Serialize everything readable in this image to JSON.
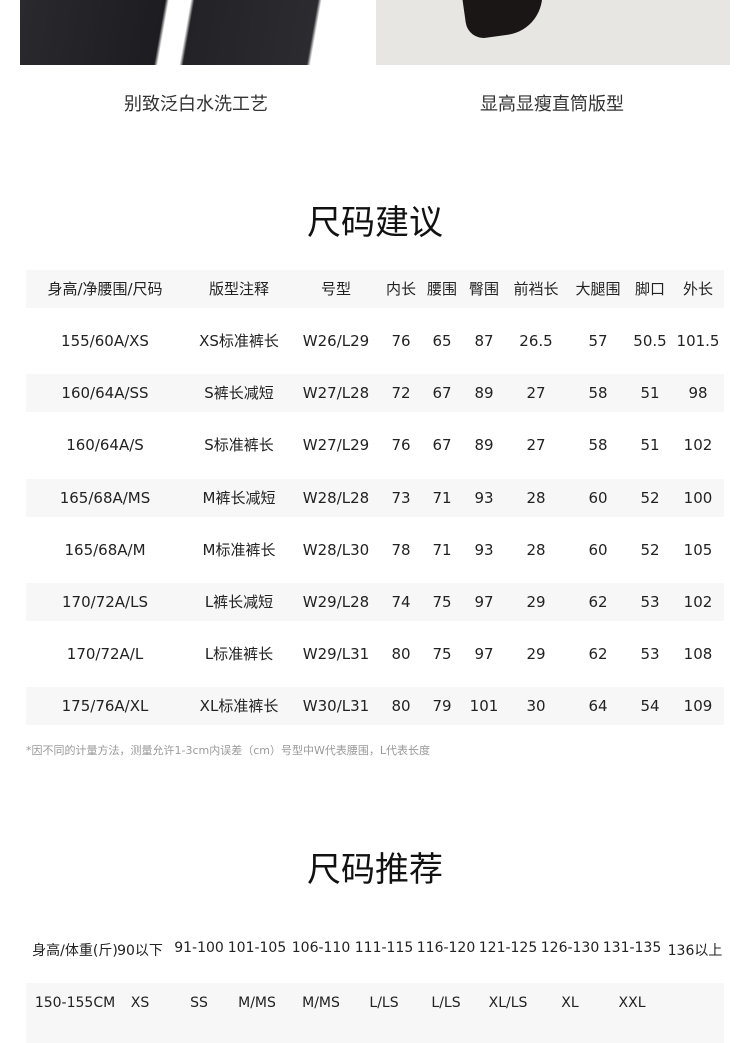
{
  "images": [
    {
      "caption": "别致泛白水洗工艺"
    },
    {
      "caption": "显高显瘦直筒版型"
    }
  ],
  "size_suggest": {
    "title": "尺码建议",
    "headers": [
      "身高/净腰围/尺码",
      "版型注释",
      "号型",
      "内长",
      "腰围",
      "臀围",
      "前裆长",
      "大腿围",
      "脚口",
      "外长"
    ],
    "rows": [
      [
        "155/60A/XS",
        "XS标准裤长",
        "W26/L29",
        "76",
        "65",
        "87",
        "26.5",
        "57",
        "50.5",
        "101.5"
      ],
      [
        "160/64A/SS",
        "S裤长减短",
        "W27/L28",
        "72",
        "67",
        "89",
        "27",
        "58",
        "51",
        "98"
      ],
      [
        "160/64A/S",
        "S标准裤长",
        "W27/L29",
        "76",
        "67",
        "89",
        "27",
        "58",
        "51",
        "102"
      ],
      [
        "165/68A/MS",
        "M裤长减短",
        "W28/L28",
        "73",
        "71",
        "93",
        "28",
        "60",
        "52",
        "100"
      ],
      [
        "165/68A/M",
        "M标准裤长",
        "W28/L30",
        "78",
        "71",
        "93",
        "28",
        "60",
        "52",
        "105"
      ],
      [
        "170/72A/LS",
        "L裤长减短",
        "W29/L28",
        "74",
        "75",
        "97",
        "29",
        "62",
        "53",
        "102"
      ],
      [
        "170/72A/L",
        "L标准裤长",
        "W29/L31",
        "80",
        "75",
        "97",
        "29",
        "62",
        "53",
        "108"
      ],
      [
        "175/76A/XL",
        "XL标准裤长",
        "W30/L31",
        "80",
        "79",
        "101",
        "30",
        "64",
        "54",
        "109"
      ]
    ],
    "note": "*因不同的计量方法，测量允许1-3cm内误差（cm）号型中W代表腰围，L代表长度"
  },
  "size_recommend": {
    "title": "尺码推荐",
    "headers": [
      "身高/体重(斤)",
      "90以下",
      "91-100",
      "101-105",
      "106-110",
      "111-115",
      "116-120",
      "121-125",
      "126-130",
      "131-135",
      "136以上"
    ],
    "rows": [
      [
        "150-155CM",
        "XS",
        "SS",
        "M/MS",
        "M/MS",
        "L/LS",
        "L/LS",
        "XL/LS",
        "XL",
        "XXL",
        ""
      ]
    ]
  }
}
